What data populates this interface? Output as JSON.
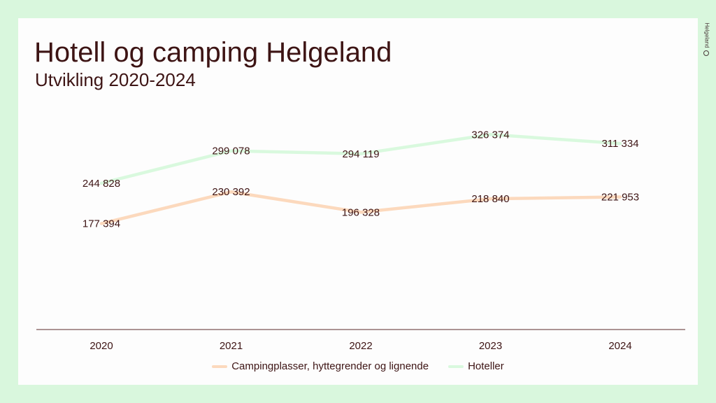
{
  "slide": {
    "title": "Hotell og camping Helgeland",
    "subtitle": "Utvikling 2020-2024",
    "brand": "Helgeland"
  },
  "colors": {
    "background": "#d9f7dd",
    "text": "#3d1414",
    "camping": "#fcd9bd",
    "hotel": "#d9f9de",
    "axis": "#5a2a2a"
  },
  "chart_data": {
    "type": "line",
    "categories": [
      "2020",
      "2021",
      "2022",
      "2023",
      "2024"
    ],
    "series": [
      {
        "name": "Hoteller",
        "values": [
          244828,
          299078,
          294119,
          326374,
          311334
        ],
        "labels": [
          "244 828",
          "299 078",
          "294 119",
          "326 374",
          "311 334"
        ]
      },
      {
        "name": "Campingplasser, hyttegrender og lignende",
        "values": [
          177394,
          230392,
          196328,
          218840,
          221953
        ],
        "labels": [
          "177 394",
          "230 392",
          "196 328",
          "218 840",
          "221 953"
        ]
      }
    ],
    "title": "Hotell og camping Helgeland",
    "subtitle": "Utvikling 2020-2024",
    "ylim": [
      0,
      400000
    ],
    "grid": false,
    "legend_position": "bottom"
  }
}
